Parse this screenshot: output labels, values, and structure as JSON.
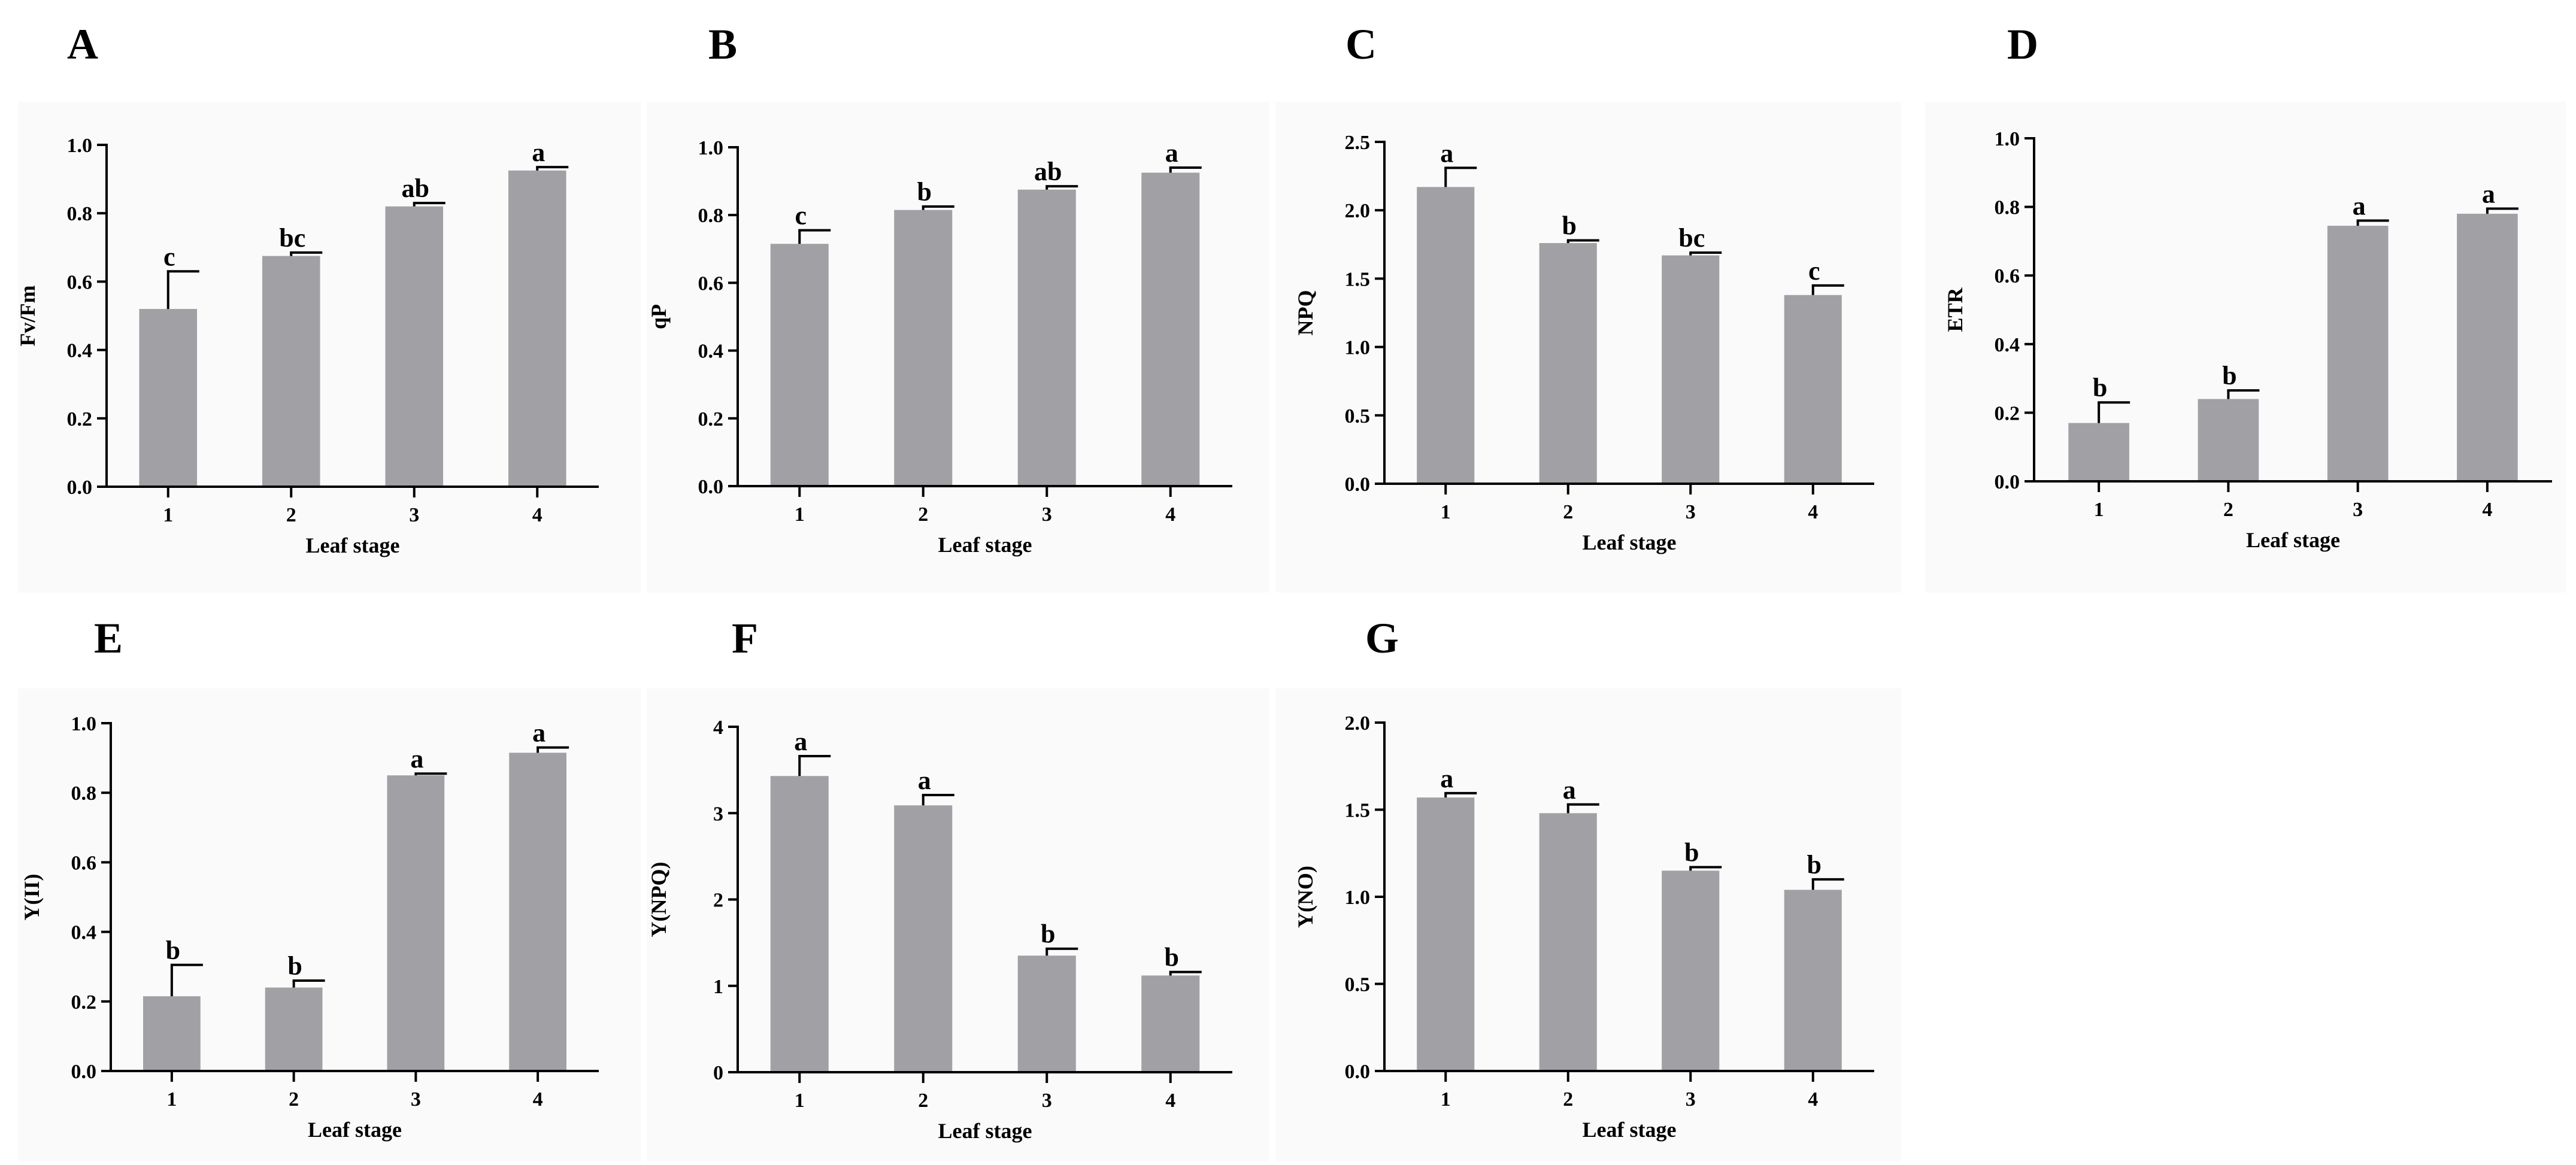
{
  "colors": {
    "bar": "#a1a1a5",
    "axis": "#000000",
    "panel_bg": "#fafafa"
  },
  "chart_data": [
    {
      "id": "A",
      "type": "bar",
      "panel_letter": "A",
      "ylabel": "Fv/Fm",
      "xlabel": "Leaf stage",
      "ylim": [
        0,
        1.0
      ],
      "yticks": [
        0.0,
        0.2,
        0.4,
        0.6,
        0.8,
        1.0
      ],
      "ytick_labels": [
        "0.0",
        "0.2",
        "0.4",
        "0.6",
        "0.8",
        "1.0"
      ],
      "categories": [
        "1",
        "2",
        "3",
        "4"
      ],
      "values": [
        0.52,
        0.675,
        0.82,
        0.925
      ],
      "errors": [
        0.11,
        0.01,
        0.01,
        0.01
      ],
      "significance": [
        "c",
        "bc",
        "ab",
        "a"
      ]
    },
    {
      "id": "B",
      "type": "bar",
      "panel_letter": "B",
      "ylabel": "qP",
      "xlabel": "Leaf stage",
      "ylim": [
        0,
        1.0
      ],
      "yticks": [
        0.0,
        0.2,
        0.4,
        0.6,
        0.8,
        1.0
      ],
      "ytick_labels": [
        "0.0",
        "0.2",
        "0.4",
        "0.6",
        "0.8",
        "1.0"
      ],
      "categories": [
        "1",
        "2",
        "3",
        "4"
      ],
      "values": [
        0.715,
        0.815,
        0.875,
        0.925
      ],
      "errors": [
        0.04,
        0.01,
        0.01,
        0.015
      ],
      "significance": [
        "c",
        "b",
        "ab",
        "a"
      ]
    },
    {
      "id": "C",
      "type": "bar",
      "panel_letter": "C",
      "ylabel": "NPQ",
      "xlabel": "Leaf stage",
      "ylim": [
        0,
        2.5
      ],
      "yticks": [
        0.0,
        0.5,
        1.0,
        1.5,
        2.0,
        2.5
      ],
      "ytick_labels": [
        "0.0",
        "0.5",
        "1.0",
        "1.5",
        "2.0",
        "2.5"
      ],
      "categories": [
        "1",
        "2",
        "3",
        "4"
      ],
      "values": [
        2.17,
        1.76,
        1.67,
        1.38
      ],
      "errors": [
        0.14,
        0.02,
        0.02,
        0.07
      ],
      "significance": [
        "a",
        "b",
        "bc",
        "c"
      ]
    },
    {
      "id": "D",
      "type": "bar",
      "panel_letter": "D",
      "ylabel": "ETR",
      "xlabel": "Leaf stage",
      "ylim": [
        0,
        1.0
      ],
      "yticks": [
        0.0,
        0.2,
        0.4,
        0.6,
        0.8,
        1.0
      ],
      "ytick_labels": [
        "0.0",
        "0.2",
        "0.4",
        "0.6",
        "0.8",
        "1.0"
      ],
      "categories": [
        "1",
        "2",
        "3",
        "4"
      ],
      "values": [
        0.17,
        0.24,
        0.745,
        0.78
      ],
      "errors": [
        0.06,
        0.025,
        0.015,
        0.015
      ],
      "significance": [
        "b",
        "b",
        "a",
        "a"
      ]
    },
    {
      "id": "E",
      "type": "bar",
      "panel_letter": "E",
      "ylabel": "Y(II)",
      "xlabel": "Leaf stage",
      "ylim": [
        0,
        1.0
      ],
      "yticks": [
        0.0,
        0.2,
        0.4,
        0.6,
        0.8,
        1.0
      ],
      "ytick_labels": [
        "0.0",
        "0.2",
        "0.4",
        "0.6",
        "0.8",
        "1.0"
      ],
      "categories": [
        "1",
        "2",
        "3",
        "4"
      ],
      "values": [
        0.215,
        0.24,
        0.85,
        0.915
      ],
      "errors": [
        0.09,
        0.02,
        0.005,
        0.015
      ],
      "significance": [
        "b",
        "b",
        "a",
        "a"
      ]
    },
    {
      "id": "F",
      "type": "bar",
      "panel_letter": "F",
      "ylabel": "Y(NPQ)",
      "xlabel": "Leaf stage",
      "ylim": [
        0,
        4
      ],
      "yticks": [
        0,
        1,
        2,
        3,
        4
      ],
      "ytick_labels": [
        "0",
        "1",
        "2",
        "3",
        "4"
      ],
      "categories": [
        "1",
        "2",
        "3",
        "4"
      ],
      "values": [
        3.43,
        3.09,
        1.35,
        1.12
      ],
      "errors": [
        0.23,
        0.12,
        0.08,
        0.04
      ],
      "significance": [
        "a",
        "a",
        "b",
        "b"
      ]
    },
    {
      "id": "G",
      "type": "bar",
      "panel_letter": "G",
      "ylabel": "Y(NO)",
      "xlabel": "Leaf stage",
      "ylim": [
        0,
        2.0
      ],
      "yticks": [
        0.0,
        0.5,
        1.0,
        1.5,
        2.0
      ],
      "ytick_labels": [
        "0.0",
        "0.5",
        "1.0",
        "1.5",
        "2.0"
      ],
      "categories": [
        "1",
        "2",
        "3",
        "4"
      ],
      "values": [
        1.57,
        1.48,
        1.15,
        1.04
      ],
      "errors": [
        0.025,
        0.05,
        0.02,
        0.06
      ],
      "significance": [
        "a",
        "a",
        "b",
        "b"
      ]
    }
  ]
}
